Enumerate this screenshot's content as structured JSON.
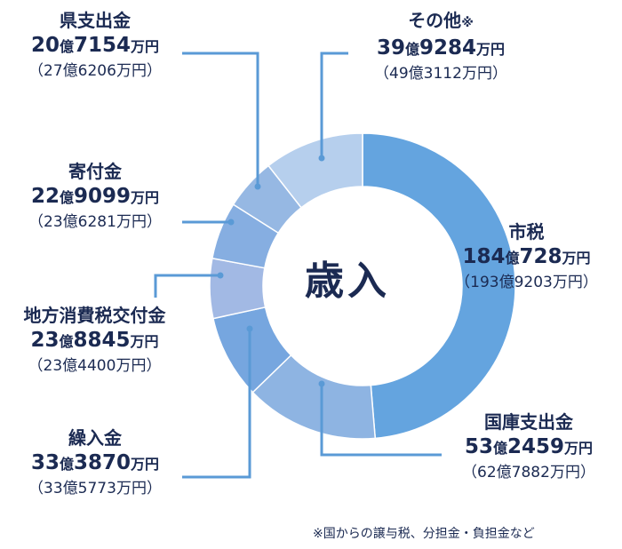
{
  "center_title": "歳入",
  "footnote": "※国からの譲与税、分担金・負担金など",
  "colors": {
    "text": "#1b2a52",
    "leader": "#5a9ad6",
    "slices": [
      "#64a4df",
      "#8eb4e2",
      "#76a6df",
      "#a2b9e4",
      "#86aee1",
      "#96b8e3",
      "#b6cfed"
    ]
  },
  "chart_data": {
    "type": "pie",
    "title": "歳入",
    "unit": "万円",
    "slices": [
      {
        "label": "市税",
        "value": 1840728,
        "amount_text": "184億728万円",
        "prev_text": "（193億9203万円）"
      },
      {
        "label": "国庫支出金",
        "value": 532459,
        "amount_text": "53億2459万円",
        "prev_text": "（62億7882万円）"
      },
      {
        "label": "繰入金",
        "value": 333870,
        "amount_text": "33億3870万円",
        "prev_text": "（33億5773万円）"
      },
      {
        "label": "地方消費税交付金",
        "value": 238845,
        "amount_text": "23億8845万円",
        "prev_text": "（23億4400万円）"
      },
      {
        "label": "寄付金",
        "value": 229099,
        "amount_text": "22億9099万円",
        "prev_text": "（23億6281万円）"
      },
      {
        "label": "県支出金",
        "value": 207154,
        "amount_text": "20億7154万円",
        "prev_text": "（27億6206万円）"
      },
      {
        "label": "その他",
        "label_mark": "※",
        "value": 399284,
        "amount_text": "39億9284万円",
        "prev_text": "（49億3112万円）"
      }
    ]
  },
  "labels": {
    "shishi": {
      "name": "市税",
      "num1": "184",
      "unit1": "億",
      "num2": "728",
      "unit2": "万円",
      "prev": "（193億9203万円）"
    },
    "kokko": {
      "name": "国庫支出金",
      "num1": "53",
      "unit1": "億",
      "num2": "2459",
      "unit2": "万円",
      "prev": "（62億7882万円）"
    },
    "kuriire": {
      "name": "繰入金",
      "num1": "33",
      "unit1": "億",
      "num2": "3870",
      "unit2": "万円",
      "prev": "（33億5773万円）"
    },
    "chihou": {
      "name": "地方消費税交付金",
      "num1": "23",
      "unit1": "億",
      "num2": "8845",
      "unit2": "万円",
      "prev": "（23億4400万円）"
    },
    "kifu": {
      "name": "寄付金",
      "num1": "22",
      "unit1": "億",
      "num2": "9099",
      "unit2": "万円",
      "prev": "（23億6281万円）"
    },
    "ken": {
      "name": "県支出金",
      "num1": "20",
      "unit1": "億",
      "num2": "7154",
      "unit2": "万円",
      "prev": "（27億6206万円）"
    },
    "sonota": {
      "name": "その他",
      "mark": "※",
      "num1": "39",
      "unit1": "億",
      "num2": "9284",
      "unit2": "万円",
      "prev": "（49億3112万円）"
    }
  }
}
